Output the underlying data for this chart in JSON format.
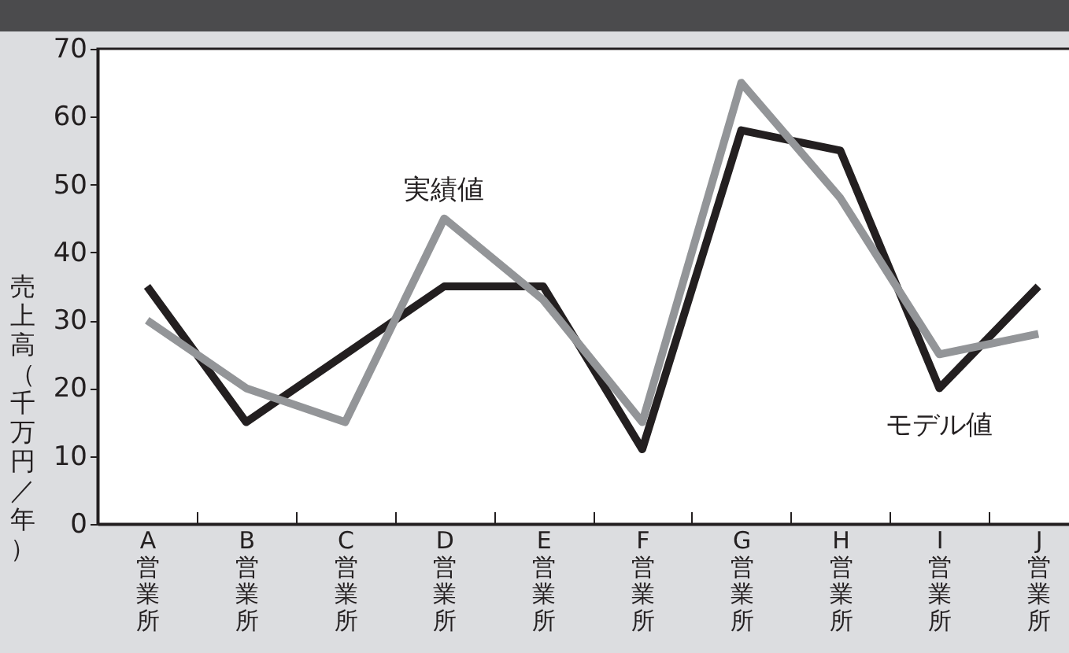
{
  "chart_data": {
    "type": "line",
    "ylabel": "売上高（千万円／年）",
    "categories": [
      "A営業所",
      "B営業所",
      "C営業所",
      "D営業所",
      "E営業所",
      "F営業所",
      "G営業所",
      "H営業所",
      "I営業所",
      "J営業所"
    ],
    "series": [
      {
        "name": "モデル値",
        "color": "#231f20",
        "values": [
          35,
          15,
          25,
          35,
          35,
          11,
          58,
          55,
          20,
          35
        ]
      },
      {
        "name": "実績値",
        "color": "#939598",
        "values": [
          30,
          20,
          15,
          45,
          33,
          15,
          65,
          48,
          25,
          28
        ]
      }
    ],
    "ylim": [
      0,
      70
    ],
    "yticks": [
      0,
      10,
      20,
      30,
      40,
      50,
      60,
      70
    ]
  }
}
